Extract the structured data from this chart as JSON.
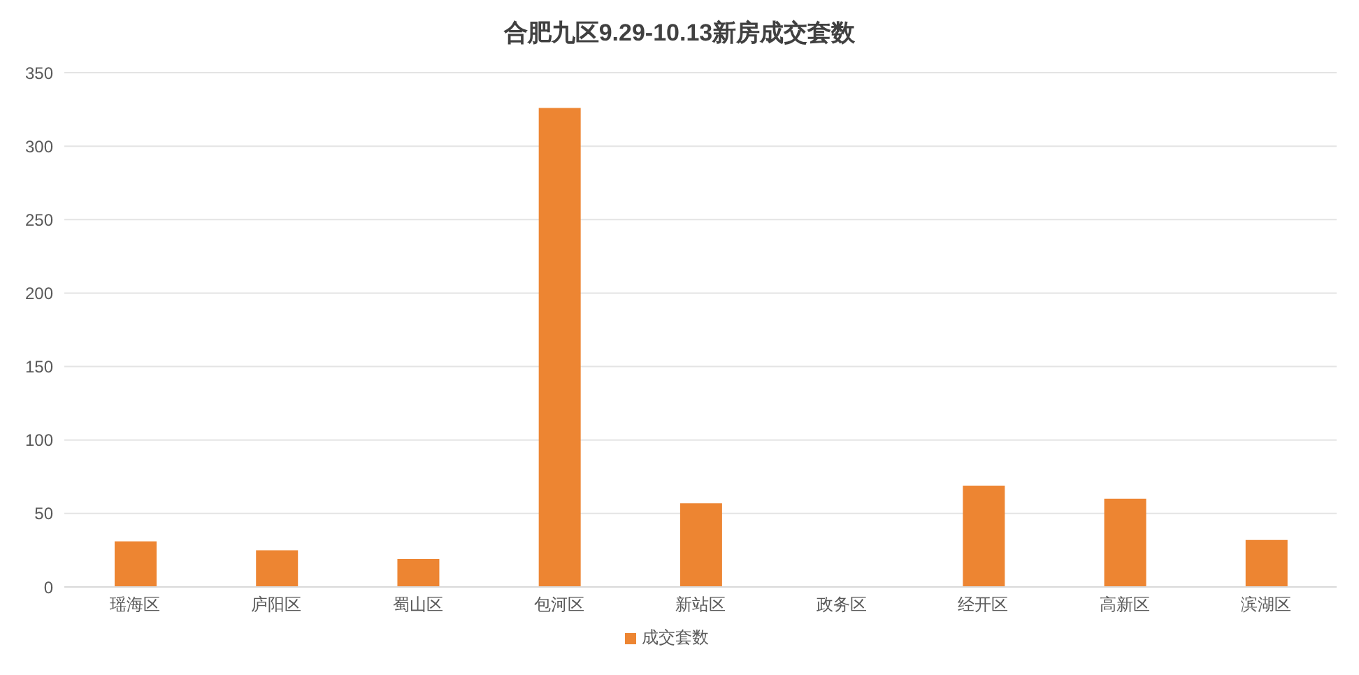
{
  "chart_data": {
    "type": "bar",
    "title": "合肥九区9.29-10.13新房成交套数",
    "categories": [
      "瑶海区",
      "庐阳区",
      "蜀山区",
      "包河区",
      "新站区",
      "政务区",
      "经开区",
      "高新区",
      "滨湖区"
    ],
    "series": [
      {
        "name": "成交套数",
        "color": "#ed8532",
        "values": [
          31,
          25,
          19,
          326,
          57,
          0,
          69,
          60,
          32
        ]
      }
    ],
    "ylim": [
      0,
      350
    ],
    "yticks": [
      0,
      50,
      100,
      150,
      200,
      250,
      300,
      350
    ],
    "grid": "y",
    "legend": "bottom"
  }
}
